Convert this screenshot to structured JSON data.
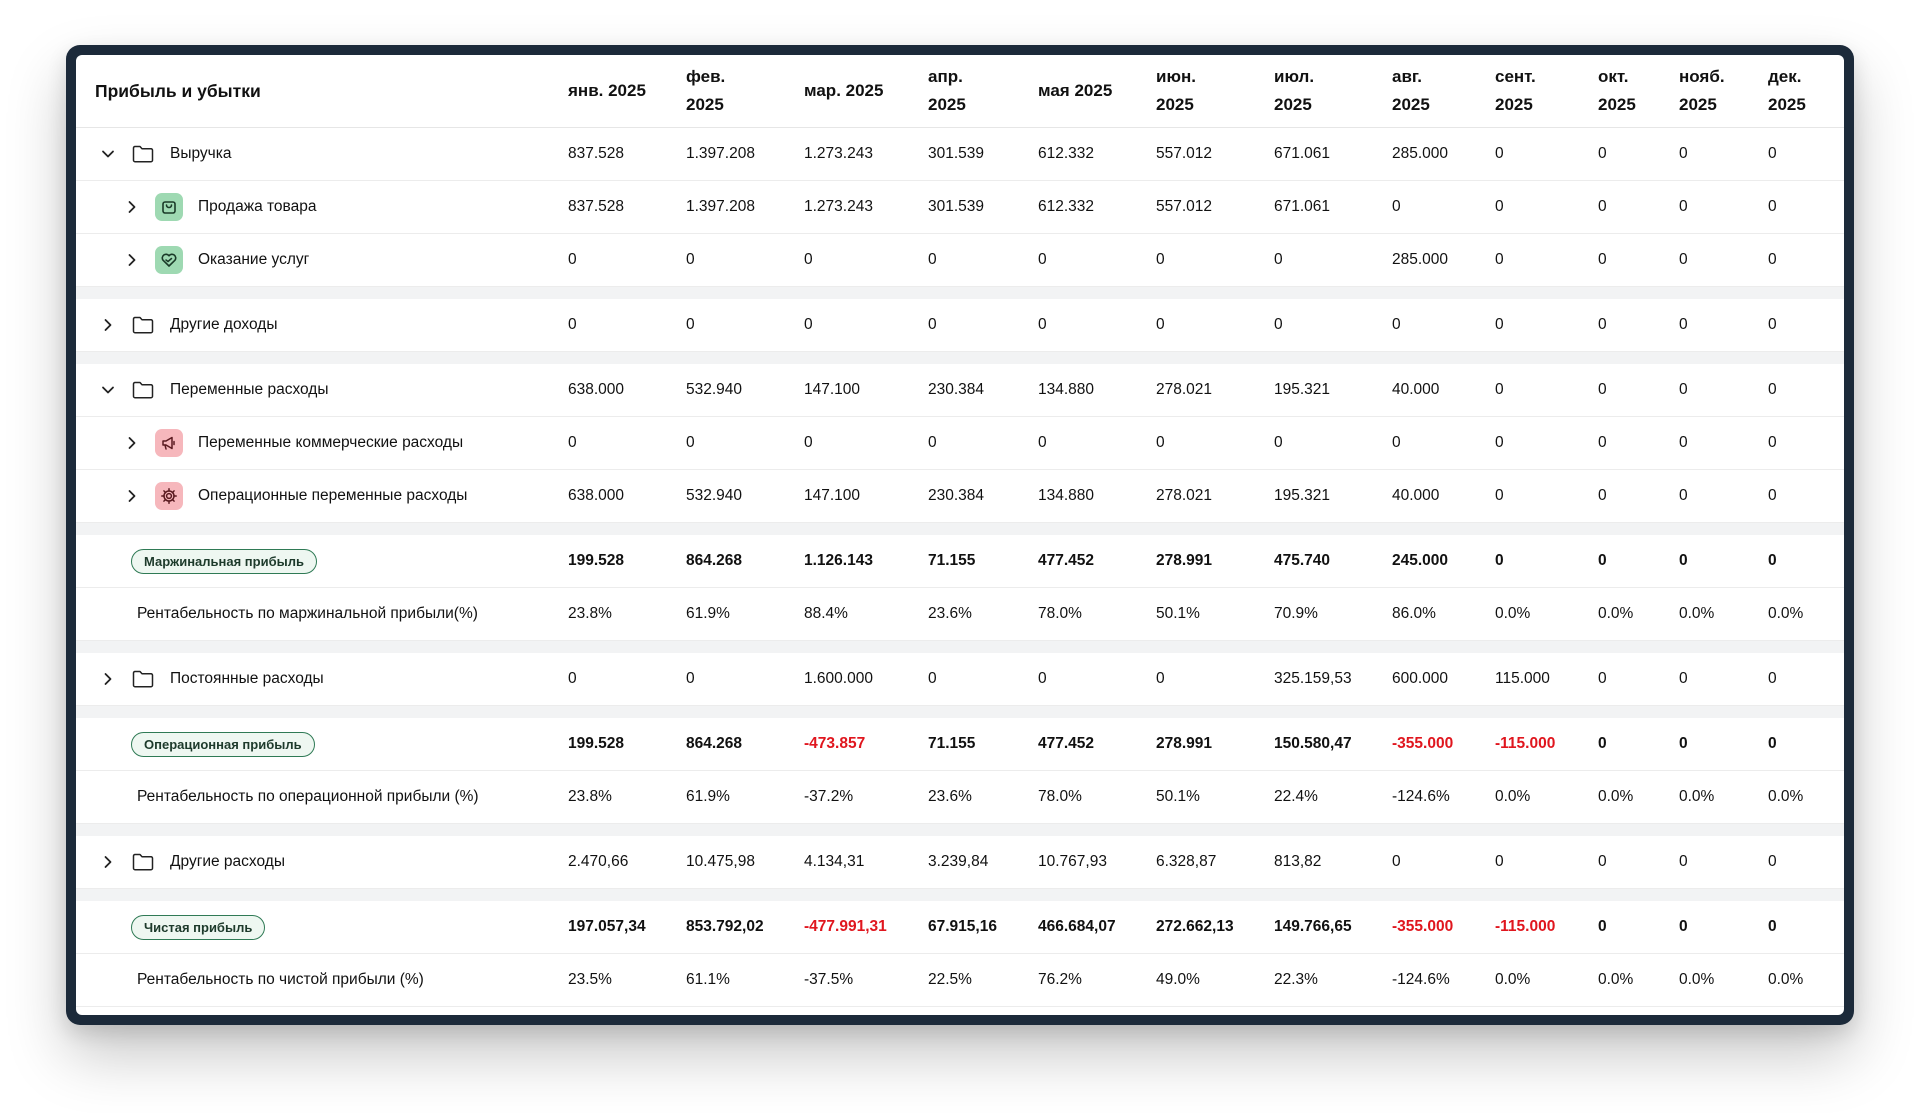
{
  "table": {
    "title": "Прибыль и убытки",
    "months": [
      {
        "l1": "янв. 2025",
        "l2": ""
      },
      {
        "l1": "фев.",
        "l2": "2025"
      },
      {
        "l1": "мар. 2025",
        "l2": ""
      },
      {
        "l1": "апр.",
        "l2": "2025"
      },
      {
        "l1": "мая 2025",
        "l2": ""
      },
      {
        "l1": "июн.",
        "l2": "2025"
      },
      {
        "l1": "июл.",
        "l2": "2025"
      },
      {
        "l1": "авг.",
        "l2": "2025"
      },
      {
        "l1": "сент.",
        "l2": "2025"
      },
      {
        "l1": "окт.",
        "l2": "2025"
      },
      {
        "l1": "нояб.",
        "l2": "2025"
      },
      {
        "l1": "дек.",
        "l2": "2025"
      }
    ],
    "rows": [
      {
        "kind": "group",
        "expanded": true,
        "label": "Выручка",
        "icon": "folder-icon",
        "values": [
          "837.528",
          "1.397.208",
          "1.273.243",
          "301.539",
          "612.332",
          "557.012",
          "671.061",
          "285.000",
          "0",
          "0",
          "0",
          "0"
        ]
      },
      {
        "kind": "child",
        "label": "Продажа товара",
        "icon": "shopping-bag-icon",
        "icon_color": "green",
        "values": [
          "837.528",
          "1.397.208",
          "1.273.243",
          "301.539",
          "612.332",
          "557.012",
          "671.061",
          "0",
          "0",
          "0",
          "0",
          "0"
        ]
      },
      {
        "kind": "child",
        "label": "Оказание услуг",
        "icon": "heart-handshake-icon",
        "icon_color": "green",
        "values": [
          "0",
          "0",
          "0",
          "0",
          "0",
          "0",
          "0",
          "285.000",
          "0",
          "0",
          "0",
          "0"
        ]
      },
      {
        "kind": "spacer"
      },
      {
        "kind": "group",
        "expanded": false,
        "label": "Другие доходы",
        "icon": "folder-icon",
        "values": [
          "0",
          "0",
          "0",
          "0",
          "0",
          "0",
          "0",
          "0",
          "0",
          "0",
          "0",
          "0"
        ]
      },
      {
        "kind": "spacer"
      },
      {
        "kind": "group",
        "expanded": true,
        "label": "Переменные расходы",
        "icon": "folder-icon",
        "values": [
          "638.000",
          "532.940",
          "147.100",
          "230.384",
          "134.880",
          "278.021",
          "195.321",
          "40.000",
          "0",
          "0",
          "0",
          "0"
        ]
      },
      {
        "kind": "child",
        "label": "Переменные коммерческие расходы",
        "icon": "megaphone-icon",
        "icon_color": "pink",
        "values": [
          "0",
          "0",
          "0",
          "0",
          "0",
          "0",
          "0",
          "0",
          "0",
          "0",
          "0",
          "0"
        ]
      },
      {
        "kind": "child",
        "label": "Операционные переменные расходы",
        "icon": "gear-icon",
        "icon_color": "pink",
        "values": [
          "638.000",
          "532.940",
          "147.100",
          "230.384",
          "134.880",
          "278.021",
          "195.321",
          "40.000",
          "0",
          "0",
          "0",
          "0"
        ]
      },
      {
        "kind": "spacer"
      },
      {
        "kind": "badge",
        "label": "Маржинальная прибыль",
        "values": [
          "199.528",
          "864.268",
          "1.126.143",
          "71.155",
          "477.452",
          "278.991",
          "475.740",
          "245.000",
          "0",
          "0",
          "0",
          "0"
        ]
      },
      {
        "kind": "plain",
        "label": "Рентабельность по маржинальной прибыли(%)",
        "values": [
          "23.8%",
          "61.9%",
          "88.4%",
          "23.6%",
          "78.0%",
          "50.1%",
          "70.9%",
          "86.0%",
          "0.0%",
          "0.0%",
          "0.0%",
          "0.0%"
        ]
      },
      {
        "kind": "spacer"
      },
      {
        "kind": "group",
        "expanded": false,
        "label": "Постоянные расходы",
        "icon": "folder-icon",
        "values": [
          "0",
          "0",
          "1.600.000",
          "0",
          "0",
          "0",
          "325.159,53",
          "600.000",
          "115.000",
          "0",
          "0",
          "0"
        ]
      },
      {
        "kind": "spacer"
      },
      {
        "kind": "badge",
        "label": "Операционная прибыль",
        "values": [
          "199.528",
          "864.268",
          "-473.857",
          "71.155",
          "477.452",
          "278.991",
          "150.580,47",
          "-355.000",
          "-115.000",
          "0",
          "0",
          "0"
        ]
      },
      {
        "kind": "plain",
        "label": "Рентабельность по операционной прибыли (%)",
        "values": [
          "23.8%",
          "61.9%",
          "-37.2%",
          "23.6%",
          "78.0%",
          "50.1%",
          "22.4%",
          "-124.6%",
          "0.0%",
          "0.0%",
          "0.0%",
          "0.0%"
        ]
      },
      {
        "kind": "spacer"
      },
      {
        "kind": "group",
        "expanded": false,
        "label": "Другие расходы",
        "icon": "folder-icon",
        "values": [
          "2.470,66",
          "10.475,98",
          "4.134,31",
          "3.239,84",
          "10.767,93",
          "6.328,87",
          "813,82",
          "0",
          "0",
          "0",
          "0",
          "0"
        ]
      },
      {
        "kind": "spacer"
      },
      {
        "kind": "badge",
        "label": "Чистая прибыль",
        "values": [
          "197.057,34",
          "853.792,02",
          "-477.991,31",
          "67.915,16",
          "466.684,07",
          "272.662,13",
          "149.766,65",
          "-355.000",
          "-115.000",
          "0",
          "0",
          "0"
        ]
      },
      {
        "kind": "plain",
        "label": "Рентабельность по чистой прибыли (%)",
        "values": [
          "23.5%",
          "61.1%",
          "-37.5%",
          "22.5%",
          "76.2%",
          "49.0%",
          "22.3%",
          "-124.6%",
          "0.0%",
          "0.0%",
          "0.0%",
          "0.0%"
        ]
      }
    ]
  },
  "colors": {
    "frame": "#1c2a3a",
    "negative": "#e0161e",
    "badge_border": "#2f7a55",
    "icon_green": "#9ed9b2",
    "icon_pink": "#f6b7bc",
    "spacer": "#f2f3f4"
  }
}
